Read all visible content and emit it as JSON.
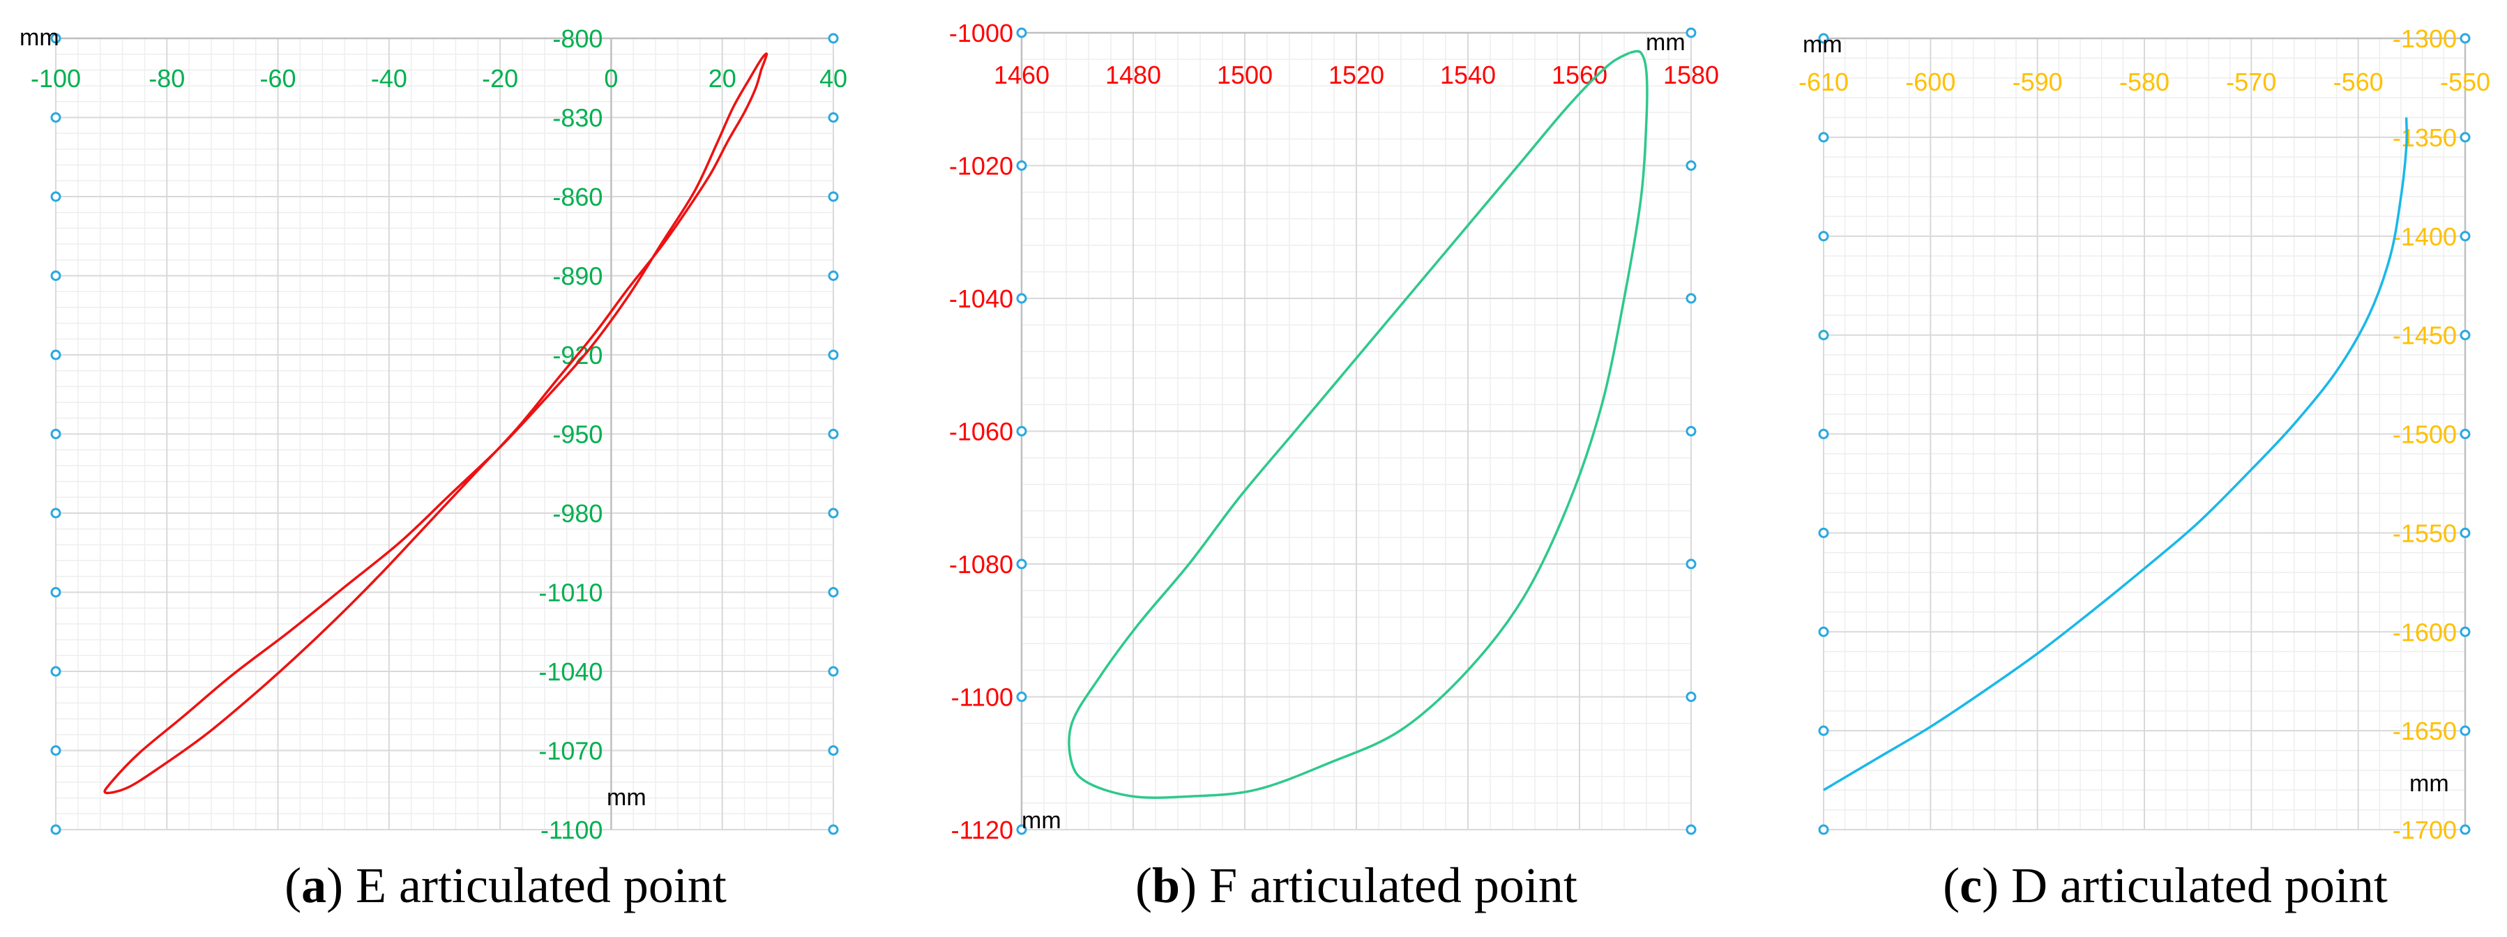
{
  "chart_data": [
    {
      "type": "line",
      "panel_label": "a",
      "caption": "E articulated point",
      "x_unit": "mm",
      "y_unit": "mm",
      "xlim": [
        -100,
        40
      ],
      "ylim": [
        -1100,
        -800
      ],
      "x_ticks": [
        -100,
        -80,
        -60,
        -40,
        -20,
        0,
        20,
        40
      ],
      "y_ticks": [
        -800,
        -830,
        -860,
        -890,
        -920,
        -950,
        -980,
        -1010,
        -1040,
        -1070,
        -1100
      ],
      "tick_color": "#00b050",
      "line_color": "#ee1111",
      "grid": true,
      "closed": true,
      "series": [
        {
          "x": [
            27,
            26,
            24,
            21,
            18,
            14,
            9,
            3,
            -3,
            -10,
            -17,
            -25,
            -33,
            -41,
            -49,
            -57,
            -65,
            -73,
            -81,
            -87,
            -91,
            -90,
            -85,
            -77,
            -68,
            -58,
            -48,
            -38,
            -29,
            -20,
            -12,
            -4,
            3,
            9,
            15,
            19,
            22,
            25,
            27,
            28,
            27
          ],
          "y": [
            -812,
            -819,
            -828,
            -839,
            -851,
            -864,
            -879,
            -895,
            -912,
            -930,
            -948,
            -966,
            -984,
            -1002,
            -1019,
            -1035,
            -1050,
            -1064,
            -1076,
            -1084,
            -1086,
            -1082,
            -1071,
            -1057,
            -1041,
            -1025,
            -1008,
            -991,
            -973,
            -955,
            -937,
            -918,
            -898,
            -878,
            -858,
            -840,
            -826,
            -815,
            -808,
            -806,
            -812
          ]
        }
      ]
    },
    {
      "type": "line",
      "panel_label": "b",
      "caption": "F articulated point",
      "x_unit": "mm",
      "y_unit": "mm",
      "xlim": [
        1460,
        1580
      ],
      "ylim": [
        -1120,
        -1000
      ],
      "x_ticks": [
        1460,
        1480,
        1500,
        1520,
        1540,
        1560,
        1580
      ],
      "y_ticks": [
        -1000,
        -1020,
        -1040,
        -1060,
        -1080,
        -1100,
        -1120
      ],
      "tick_color": "#ff0000",
      "line_color": "#2ec98c",
      "grid": true,
      "closed": true,
      "series": [
        {
          "x": [
            1569,
            1565,
            1558,
            1549,
            1539,
            1529,
            1519,
            1509,
            1499,
            1490,
            1481,
            1474,
            1469,
            1469,
            1472,
            1480,
            1490,
            1502,
            1515,
            1528,
            1540,
            1550,
            1558,
            1564,
            1568,
            1571,
            1572,
            1572,
            1571,
            1569
          ],
          "y": [
            -1003,
            -1005,
            -1011,
            -1020,
            -1030,
            -1040,
            -1050,
            -1060,
            -1070,
            -1080,
            -1089,
            -1097,
            -1104,
            -1110,
            -1113,
            -1115,
            -1115,
            -1114,
            -1110,
            -1105,
            -1096,
            -1085,
            -1071,
            -1056,
            -1040,
            -1025,
            -1013,
            -1006,
            -1003,
            -1003
          ]
        }
      ]
    },
    {
      "type": "line",
      "panel_label": "c",
      "caption": "D articulated point",
      "x_unit": "mm",
      "y_unit": "mm",
      "xlim": [
        -610,
        -550
      ],
      "ylim": [
        -1700,
        -1300
      ],
      "x_ticks": [
        -610,
        -600,
        -590,
        -580,
        -570,
        -560,
        -550
      ],
      "y_ticks": [
        -1300,
        -1350,
        -1400,
        -1450,
        -1500,
        -1550,
        -1600,
        -1650,
        -1700
      ],
      "tick_color": "#ffc000",
      "line_color": "#1ab8e8",
      "grid": true,
      "closed": false,
      "series": [
        {
          "x": [
            -610,
            -605,
            -600,
            -595,
            -590,
            -585,
            -580,
            -575,
            -570,
            -566,
            -562,
            -559,
            -557,
            -556,
            -555.5,
            -555.5
          ],
          "y": [
            -1680,
            -1664,
            -1648,
            -1630,
            -1611,
            -1590,
            -1568,
            -1545,
            -1518,
            -1495,
            -1468,
            -1440,
            -1410,
            -1380,
            -1355,
            -1340
          ]
        }
      ]
    }
  ]
}
